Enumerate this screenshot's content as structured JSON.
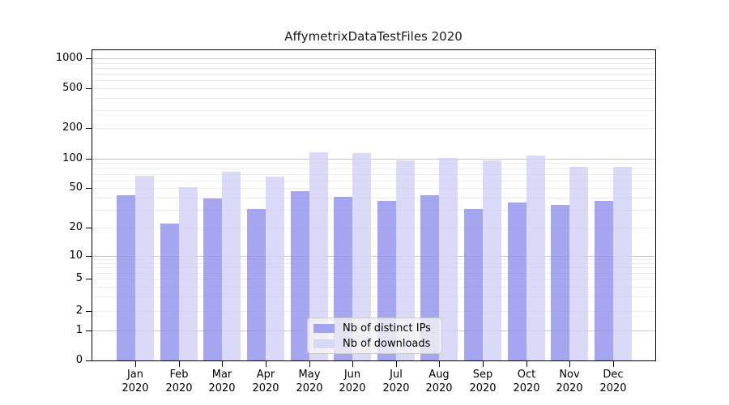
{
  "title": "AffymetrixDataTestFiles 2020",
  "chart_data": {
    "type": "bar",
    "title": "AffymetrixDataTestFiles 2020",
    "categories": [
      "Jan",
      "Feb",
      "Mar",
      "Apr",
      "May",
      "Jun",
      "Jul",
      "Aug",
      "Sep",
      "Oct",
      "Nov",
      "Dec"
    ],
    "year": "2020",
    "series": [
      {
        "name": "Nb of distinct IPs",
        "color": "rgba(143,143,236,0.8)",
        "solid_color": "#a5a5f0",
        "values": [
          42,
          22,
          39,
          31,
          46,
          41,
          37,
          42,
          31,
          36,
          34,
          37
        ]
      },
      {
        "name": "Nb of downloads",
        "color": "rgba(209,209,246,0.8)",
        "solid_color": "#dadaf8",
        "values": [
          67,
          51,
          74,
          66,
          116,
          114,
          97,
          101,
          96,
          107,
          82,
          82
        ]
      }
    ],
    "yscale": "symlog",
    "ylim": [
      0,
      1000
    ],
    "ytick_values": [
      1000,
      500,
      200,
      100,
      50,
      20,
      10,
      5,
      2,
      1,
      0
    ],
    "ytick_labels": [
      "1000",
      "500",
      "200",
      "100",
      "50",
      "20",
      "10",
      "5",
      "2",
      "1",
      "0"
    ],
    "grid": true,
    "legend_position": "lower-center"
  },
  "colors": {
    "background": "#ffffff",
    "bar_distinct_ips": "rgba(143,143,236,0.8)",
    "bar_downloads": "rgba(209,209,246,0.8)",
    "grid_minor": "#ececec",
    "grid_major": "#c6c6c6",
    "spine": "#000000",
    "legend_background": "#f2f2f2"
  }
}
